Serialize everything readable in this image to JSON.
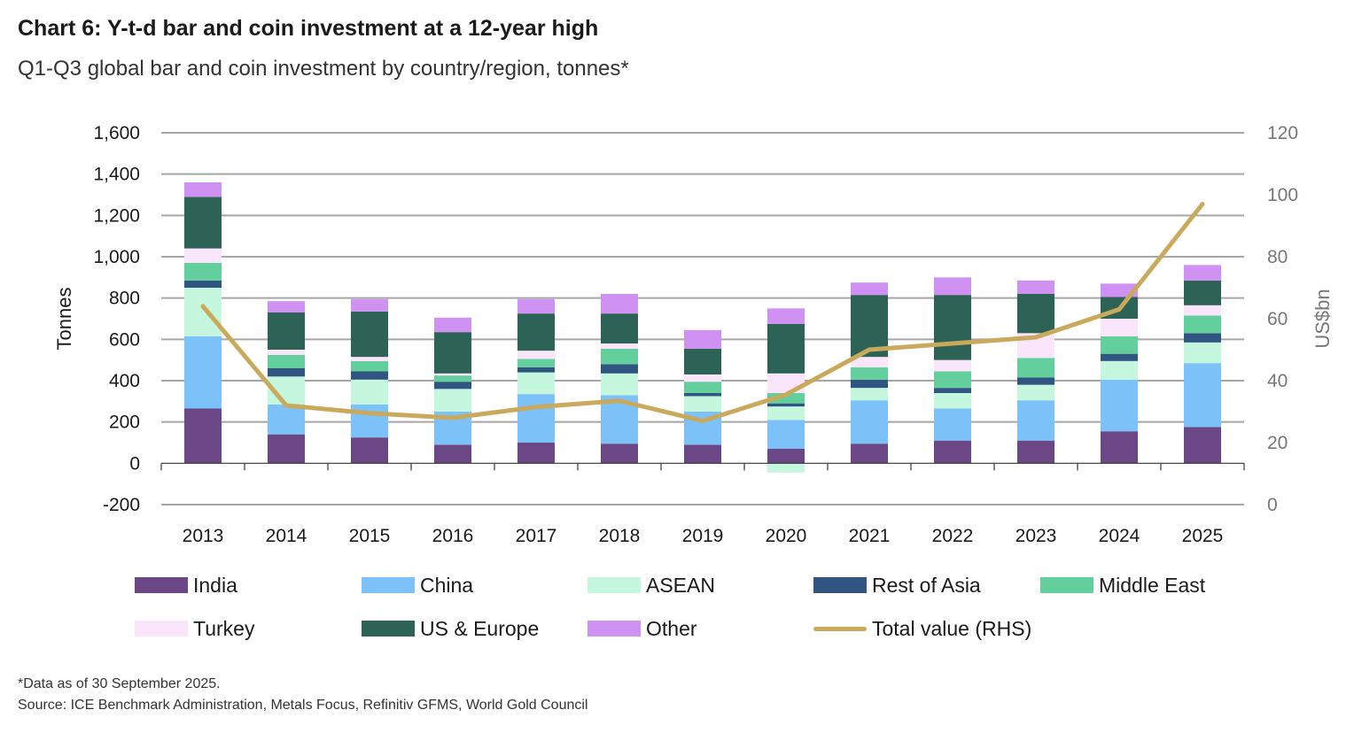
{
  "header": {
    "title": "Chart 6: Y-t-d bar and coin investment at a 12-year high",
    "subtitle": "Q1-Q3 global bar and coin investment by country/region, tonnes*"
  },
  "chart_data": {
    "type": "bar",
    "stacked": true,
    "categories": [
      "2013",
      "2014",
      "2015",
      "2016",
      "2017",
      "2018",
      "2019",
      "2020",
      "2021",
      "2022",
      "2023",
      "2024",
      "2025"
    ],
    "ylabel": "Tonnes",
    "ylim": [
      -200,
      1600
    ],
    "yticks": [
      -200,
      0,
      200,
      400,
      600,
      800,
      1000,
      1200,
      1400,
      1600
    ],
    "ytick_labels": [
      "-200",
      "0",
      "200",
      "400",
      "600",
      "800",
      "1,000",
      "1,200",
      "1,400",
      "1,600"
    ],
    "y2label": "US$bn",
    "y2lim": [
      0,
      120
    ],
    "y2ticks": [
      0,
      20,
      40,
      60,
      80,
      100,
      120
    ],
    "y2tick_labels": [
      "0",
      "20",
      "40",
      "60",
      "80",
      "100",
      "120"
    ],
    "grid": true,
    "series": [
      {
        "name": "India",
        "color": "#6b4785",
        "values": [
          265,
          140,
          125,
          90,
          100,
          95,
          90,
          70,
          95,
          110,
          110,
          155,
          175
        ]
      },
      {
        "name": "China",
        "color": "#7cc1f7",
        "values": [
          350,
          145,
          160,
          160,
          235,
          235,
          160,
          140,
          210,
          155,
          195,
          250,
          310
        ]
      },
      {
        "name": "ASEAN",
        "color": "#c4f7dd",
        "values": [
          235,
          135,
          120,
          110,
          105,
          105,
          75,
          65,
          60,
          75,
          75,
          90,
          100
        ]
      },
      {
        "name": "Rest of Asia",
        "color": "#2f5580",
        "values": [
          35,
          40,
          40,
          35,
          25,
          45,
          15,
          15,
          40,
          25,
          35,
          35,
          45
        ]
      },
      {
        "name": "Middle East",
        "color": "#63cf9c",
        "values": [
          85,
          65,
          50,
          30,
          40,
          75,
          55,
          50,
          60,
          80,
          95,
          85,
          85
        ]
      },
      {
        "name": "Turkey",
        "color": "#fbe5fb",
        "values": [
          70,
          25,
          20,
          10,
          40,
          25,
          35,
          95,
          50,
          55,
          120,
          85,
          50
        ]
      },
      {
        "name": "US & Europe",
        "color": "#2d6356",
        "values": [
          250,
          180,
          220,
          200,
          180,
          145,
          125,
          240,
          300,
          315,
          190,
          105,
          120
        ]
      },
      {
        "name": "Other",
        "color": "#cf91f2",
        "values": [
          70,
          55,
          60,
          70,
          70,
          95,
          90,
          75,
          60,
          85,
          65,
          65,
          75
        ]
      }
    ],
    "negative": [
      {
        "name": "ASEAN",
        "color": "#c4f7dd",
        "year": "2020",
        "value": -45
      }
    ],
    "line": {
      "name": "Total value (RHS)",
      "color": "#c9a95c",
      "axis": "right",
      "values": [
        64,
        32,
        29.5,
        28,
        31.5,
        33.5,
        27,
        35.5,
        50,
        52,
        54,
        63,
        97
      ]
    }
  },
  "legend": {
    "items": [
      "India",
      "China",
      "ASEAN",
      "Rest of Asia",
      "Middle East",
      "Turkey",
      "US & Europe",
      "Other",
      "Total value (RHS)"
    ],
    "colors": [
      "#6b4785",
      "#7cc1f7",
      "#c4f7dd",
      "#2f5580",
      "#63cf9c",
      "#fbe5fb",
      "#2d6356",
      "#cf91f2",
      "#c9a95c"
    ]
  },
  "footnotes": {
    "note": "*Data as of 30 September 2025.",
    "source": "Source: ICE Benchmark Administration, Metals Focus, Refinitiv GFMS, World Gold Council"
  }
}
